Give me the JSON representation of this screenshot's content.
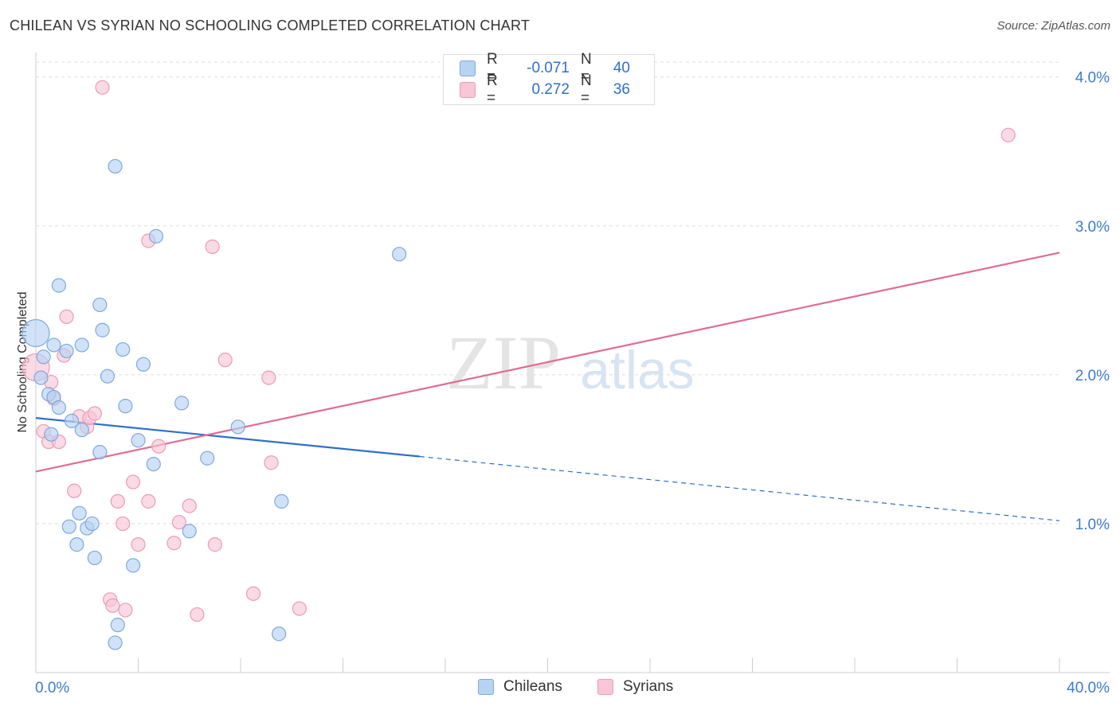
{
  "header": {
    "title": "CHILEAN VS SYRIAN NO SCHOOLING COMPLETED CORRELATION CHART",
    "source": "Source: ZipAtlas.com"
  },
  "watermark": {
    "zip": "ZIP",
    "atlas": "atlas"
  },
  "colors": {
    "blue_fill": "#b7d3f2",
    "blue_stroke": "#7ea9de",
    "blue_line": "#2f6fcb",
    "pink_fill": "#f8c6d6",
    "pink_stroke": "#ec9bb6",
    "pink_line": "#e06b94",
    "grid": "#dddddd",
    "axis_text": "#3d7bd0"
  },
  "legend": {
    "rows": [
      {
        "r_label": "R =",
        "r_value": "-0.071",
        "n_label": "N =",
        "n_value": "40",
        "color": "#b7d3f2",
        "border": "#7ea9de"
      },
      {
        "r_label": "R =",
        "r_value": "0.272",
        "n_label": "N =",
        "n_value": "36",
        "color": "#f8c6d6",
        "border": "#ec9bb6"
      }
    ]
  },
  "bottom_legend": [
    {
      "label": "Chileans",
      "color": "#b7d3f2",
      "border": "#7ea9de"
    },
    {
      "label": "Syrians",
      "color": "#f8c6d6",
      "border": "#ec9bb6"
    }
  ],
  "chart_data": {
    "type": "scatter",
    "title": "CHILEAN VS SYRIAN NO SCHOOLING COMPLETED CORRELATION CHART",
    "xlabel": "",
    "ylabel": "No Schooling Completed",
    "xlim": [
      0,
      40
    ],
    "ylim": [
      0,
      4.1
    ],
    "x_tick_labels": [
      "0.0%",
      "40.0%"
    ],
    "y_ticks": [
      1.0,
      2.0,
      3.0,
      4.0
    ],
    "y_tick_labels": [
      "1.0%",
      "2.0%",
      "3.0%",
      "4.0%"
    ],
    "grid": true,
    "series": [
      {
        "name": "Chileans",
        "points": [
          {
            "x": 0.0,
            "y": 2.28,
            "big": true
          },
          {
            "x": 0.3,
            "y": 2.12
          },
          {
            "x": 0.2,
            "y": 1.98
          },
          {
            "x": 0.5,
            "y": 1.87
          },
          {
            "x": 0.7,
            "y": 1.85
          },
          {
            "x": 0.9,
            "y": 1.78
          },
          {
            "x": 0.6,
            "y": 1.6
          },
          {
            "x": 1.4,
            "y": 1.69
          },
          {
            "x": 1.8,
            "y": 1.63
          },
          {
            "x": 0.7,
            "y": 2.2
          },
          {
            "x": 1.2,
            "y": 2.16
          },
          {
            "x": 1.8,
            "y": 2.2
          },
          {
            "x": 0.9,
            "y": 2.6
          },
          {
            "x": 2.5,
            "y": 2.47
          },
          {
            "x": 2.6,
            "y": 2.3
          },
          {
            "x": 3.4,
            "y": 2.17
          },
          {
            "x": 4.2,
            "y": 2.07
          },
          {
            "x": 2.8,
            "y": 1.99
          },
          {
            "x": 3.5,
            "y": 1.79
          },
          {
            "x": 5.7,
            "y": 1.81
          },
          {
            "x": 3.1,
            "y": 3.4
          },
          {
            "x": 4.7,
            "y": 2.93
          },
          {
            "x": 14.2,
            "y": 2.81
          },
          {
            "x": 2.5,
            "y": 1.48
          },
          {
            "x": 4.0,
            "y": 1.56
          },
          {
            "x": 4.6,
            "y": 1.4
          },
          {
            "x": 6.7,
            "y": 1.44
          },
          {
            "x": 7.9,
            "y": 1.65
          },
          {
            "x": 1.7,
            "y": 1.07
          },
          {
            "x": 1.3,
            "y": 0.98
          },
          {
            "x": 2.0,
            "y": 0.97
          },
          {
            "x": 2.2,
            "y": 1.0
          },
          {
            "x": 1.6,
            "y": 0.86
          },
          {
            "x": 2.3,
            "y": 0.77
          },
          {
            "x": 3.8,
            "y": 0.72
          },
          {
            "x": 6.0,
            "y": 0.95
          },
          {
            "x": 9.6,
            "y": 1.15
          },
          {
            "x": 3.2,
            "y": 0.32
          },
          {
            "x": 3.1,
            "y": 0.2
          },
          {
            "x": 9.5,
            "y": 0.26
          }
        ],
        "trend": {
          "x0": 0,
          "y0": 1.71,
          "x_solid_end": 15.0,
          "x1": 40,
          "y1": 1.02
        }
      },
      {
        "name": "Syrians",
        "points": [
          {
            "x": 0.0,
            "y": 2.05,
            "big": true
          },
          {
            "x": 0.3,
            "y": 1.62
          },
          {
            "x": 0.5,
            "y": 1.55
          },
          {
            "x": 0.9,
            "y": 1.55
          },
          {
            "x": 0.7,
            "y": 1.84
          },
          {
            "x": 1.1,
            "y": 2.13
          },
          {
            "x": 1.2,
            "y": 2.39
          },
          {
            "x": 1.7,
            "y": 1.72
          },
          {
            "x": 2.0,
            "y": 1.65
          },
          {
            "x": 2.1,
            "y": 1.71
          },
          {
            "x": 2.3,
            "y": 1.74
          },
          {
            "x": 2.6,
            "y": 3.93
          },
          {
            "x": 4.4,
            "y": 2.9
          },
          {
            "x": 6.9,
            "y": 2.86
          },
          {
            "x": 7.4,
            "y": 2.1
          },
          {
            "x": 9.1,
            "y": 1.98
          },
          {
            "x": 9.2,
            "y": 1.41
          },
          {
            "x": 4.8,
            "y": 1.52
          },
          {
            "x": 3.8,
            "y": 1.28
          },
          {
            "x": 1.5,
            "y": 1.22
          },
          {
            "x": 3.2,
            "y": 1.15
          },
          {
            "x": 4.4,
            "y": 1.15
          },
          {
            "x": 6.0,
            "y": 1.12
          },
          {
            "x": 3.4,
            "y": 1.0
          },
          {
            "x": 5.6,
            "y": 1.01
          },
          {
            "x": 4.0,
            "y": 0.86
          },
          {
            "x": 5.4,
            "y": 0.87
          },
          {
            "x": 7.0,
            "y": 0.86
          },
          {
            "x": 2.9,
            "y": 0.49
          },
          {
            "x": 3.0,
            "y": 0.45
          },
          {
            "x": 3.5,
            "y": 0.42
          },
          {
            "x": 6.3,
            "y": 0.39
          },
          {
            "x": 8.5,
            "y": 0.53
          },
          {
            "x": 10.3,
            "y": 0.43
          },
          {
            "x": 38.0,
            "y": 3.61
          },
          {
            "x": 0.6,
            "y": 1.95
          }
        ],
        "trend": {
          "x0": 0,
          "y0": 1.35,
          "x1": 40,
          "y1": 2.82
        }
      }
    ]
  }
}
